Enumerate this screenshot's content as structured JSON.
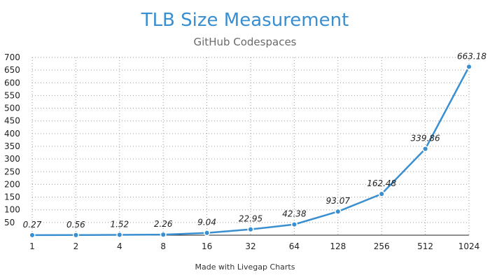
{
  "chart_data": {
    "type": "line",
    "title": "TLB Size Measurement",
    "subtitle": "GitHub Codespaces",
    "footer": "Made with Livegap Charts",
    "x": [
      "1",
      "2",
      "4",
      "8",
      "16",
      "32",
      "64",
      "128",
      "256",
      "512",
      "1024"
    ],
    "series": [
      {
        "values": [
          0.27,
          0.56,
          1.52,
          2.26,
          9.04,
          22.95,
          42.38,
          93.07,
          162.48,
          339.86,
          663.18
        ],
        "labels": [
          "0.27",
          "0.56",
          "1.52",
          "2.26",
          "9.04",
          "22.95",
          "42.38",
          "93.07",
          "162.48",
          "339.86",
          "663.18"
        ]
      }
    ],
    "ylim": [
      0,
      700
    ],
    "yticks": [
      "700",
      "650",
      "600",
      "550",
      "500",
      "450",
      "400",
      "350",
      "300",
      "250",
      "200",
      "150",
      "100",
      "50"
    ],
    "ytick_values": [
      700,
      650,
      600,
      550,
      500,
      450,
      400,
      350,
      300,
      250,
      200,
      150,
      100,
      50
    ],
    "grid": true,
    "colors": {
      "series": "#3a8fd0",
      "title": "#3a8fd0"
    }
  }
}
